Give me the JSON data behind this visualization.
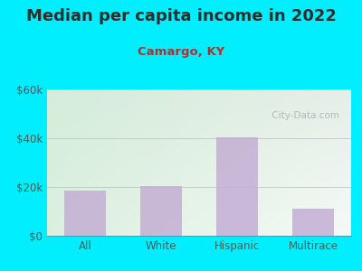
{
  "title": "Median per capita income in 2022",
  "subtitle": "Camargo, KY",
  "categories": [
    "All",
    "White",
    "Hispanic",
    "Multirace"
  ],
  "values": [
    18500,
    20500,
    40500,
    11000
  ],
  "bar_color": "#c4aed4",
  "title_color": "#2d2d2d",
  "subtitle_color": "#b03030",
  "background_color": "#00eeff",
  "plot_bg_topleft": "#d4edda",
  "plot_bg_right": "#e8ede8",
  "ylim": [
    0,
    60000
  ],
  "yticks": [
    0,
    20000,
    40000,
    60000
  ],
  "ytick_labels": [
    "$0",
    "$20k",
    "$40k",
    "$60k"
  ],
  "watermark": " City-Data.com",
  "tick_color": "#555555",
  "title_fontsize": 13,
  "subtitle_fontsize": 9.5,
  "tick_fontsize": 8.5,
  "bar_width": 0.55
}
